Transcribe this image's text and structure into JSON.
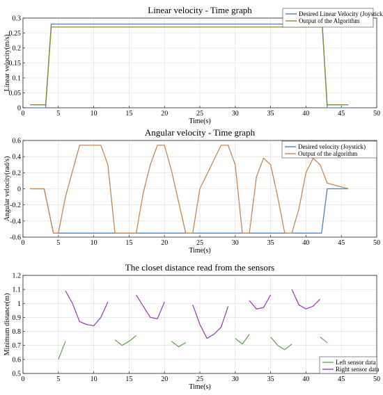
{
  "chart_data": [
    {
      "type": "line",
      "title": "Linear velocity - Time graph",
      "xlabel": "Time(s)",
      "ylabel": "Linear velocity(m/s)",
      "xlim": [
        0,
        50
      ],
      "ylim": [
        0,
        0.3
      ],
      "xticks": [
        "0",
        "5",
        "10",
        "15",
        "20",
        "25",
        "30",
        "35",
        "40",
        "45",
        "50"
      ],
      "yticks": [
        "0",
        "0.05",
        "0.1",
        "0.15",
        "0.2",
        "0.25",
        "0.3"
      ],
      "grid": true,
      "legend_position": "top-right",
      "series": [
        {
          "name": "Desired Linear Velocity (Joystick)",
          "color": "#4f81bd",
          "x": [
            1,
            3.2,
            4,
            42.3,
            43,
            46
          ],
          "y": [
            0,
            0,
            0.28,
            0.28,
            0,
            0
          ]
        },
        {
          "name": "Output of the Algorithm",
          "color": "#8a8a2a",
          "x": [
            1,
            3.2,
            4,
            42.3,
            43,
            46
          ],
          "y": [
            0.01,
            0.01,
            0.27,
            0.27,
            0.01,
            0.01
          ]
        }
      ]
    },
    {
      "type": "line",
      "title": "Angular velocity - Time graph",
      "xlabel": "Time(s)",
      "ylabel": "Angular velocity(rad/s)",
      "xlim": [
        0,
        50
      ],
      "ylim": [
        -0.6,
        0.6
      ],
      "xticks": [
        "0",
        "5",
        "10",
        "15",
        "20",
        "25",
        "30",
        "35",
        "40",
        "45",
        "50"
      ],
      "yticks": [
        "-0.6",
        "-0.4",
        "-0.2",
        "0",
        "0.2",
        "0.4",
        "0.6"
      ],
      "grid": true,
      "legend_position": "top-right",
      "series": [
        {
          "name": "Desired velocity (Joystick)",
          "color": "#4f81bd",
          "x": [
            1,
            3,
            4.3,
            42.2,
            43,
            46
          ],
          "y": [
            0,
            0,
            -0.55,
            -0.55,
            0,
            0
          ]
        },
        {
          "name": "Output of the algorithm",
          "color": "#c8864f",
          "x": [
            1,
            3,
            4.3,
            5,
            6,
            8,
            11,
            12,
            13,
            15,
            16,
            17,
            18,
            19,
            20,
            21,
            23,
            24,
            25,
            28,
            29,
            30,
            31,
            32,
            33,
            34,
            35,
            36,
            37,
            38,
            39,
            40,
            41,
            42,
            43,
            46
          ],
          "y": [
            0,
            0,
            -0.55,
            -0.55,
            -0.1,
            0.54,
            0.54,
            0.3,
            -0.55,
            -0.55,
            -0.55,
            -0.05,
            0.3,
            0.54,
            0.54,
            0.22,
            -0.55,
            -0.55,
            0.0,
            0.54,
            0.54,
            0.3,
            -0.55,
            -0.55,
            0.15,
            0.38,
            0.3,
            -0.1,
            -0.55,
            -0.55,
            -0.25,
            0.2,
            0.38,
            0.3,
            0.07,
            0
          ]
        }
      ]
    },
    {
      "type": "line",
      "title": "The closet distance read from the sensors",
      "xlabel": "Time(s)",
      "ylabel": "Minimum distance(m)",
      "xlim": [
        0,
        50
      ],
      "ylim": [
        0.5,
        1.2
      ],
      "xticks": [
        "0",
        "5",
        "10",
        "15",
        "20",
        "25",
        "30",
        "35",
        "40",
        "45",
        "50"
      ],
      "yticks": [
        "0.5",
        "0.6",
        "0.7",
        "0.8",
        "0.9",
        "1",
        "1.1",
        "1.2"
      ],
      "grid": true,
      "legend_position": "bottom-right",
      "series": [
        {
          "name": "Left sensor data",
          "color": "#6aa84f",
          "segments": [
            {
              "x": [
                5,
                6
              ],
              "y": [
                0.6,
                0.73
              ]
            },
            {
              "x": [
                13,
                14,
                15,
                16
              ],
              "y": [
                0.74,
                0.7,
                0.73,
                0.77
              ]
            },
            {
              "x": [
                21,
                22,
                23
              ],
              "y": [
                0.73,
                0.69,
                0.72
              ]
            },
            {
              "x": [
                30,
                31,
                32
              ],
              "y": [
                0.75,
                0.71,
                0.78
              ]
            },
            {
              "x": [
                35,
                36,
                37,
                38
              ],
              "y": [
                0.76,
                0.7,
                0.67,
                0.71
              ]
            },
            {
              "x": [
                42,
                43
              ],
              "y": [
                0.76,
                0.72
              ]
            }
          ]
        },
        {
          "name": "Right sensor data",
          "color": "#a040c0",
          "segments": [
            {
              "x": [
                6,
                7,
                8,
                9,
                10,
                11,
                12
              ],
              "y": [
                1.09,
                1.0,
                0.87,
                0.85,
                0.84,
                0.9,
                1.01
              ]
            },
            {
              "x": [
                16,
                17,
                18,
                19,
                20
              ],
              "y": [
                1.06,
                0.98,
                0.9,
                0.89,
                1.01
              ]
            },
            {
              "x": [
                24,
                25,
                26,
                27,
                28,
                29
              ],
              "y": [
                0.99,
                0.85,
                0.75,
                0.78,
                0.83,
                0.98
              ]
            },
            {
              "x": [
                32,
                33,
                34,
                35
              ],
              "y": [
                1.02,
                0.96,
                0.97,
                1.06
              ]
            },
            {
              "x": [
                38,
                39,
                40,
                41,
                42
              ],
              "y": [
                1.1,
                0.99,
                0.96,
                0.98,
                1.03
              ]
            }
          ]
        }
      ]
    }
  ]
}
